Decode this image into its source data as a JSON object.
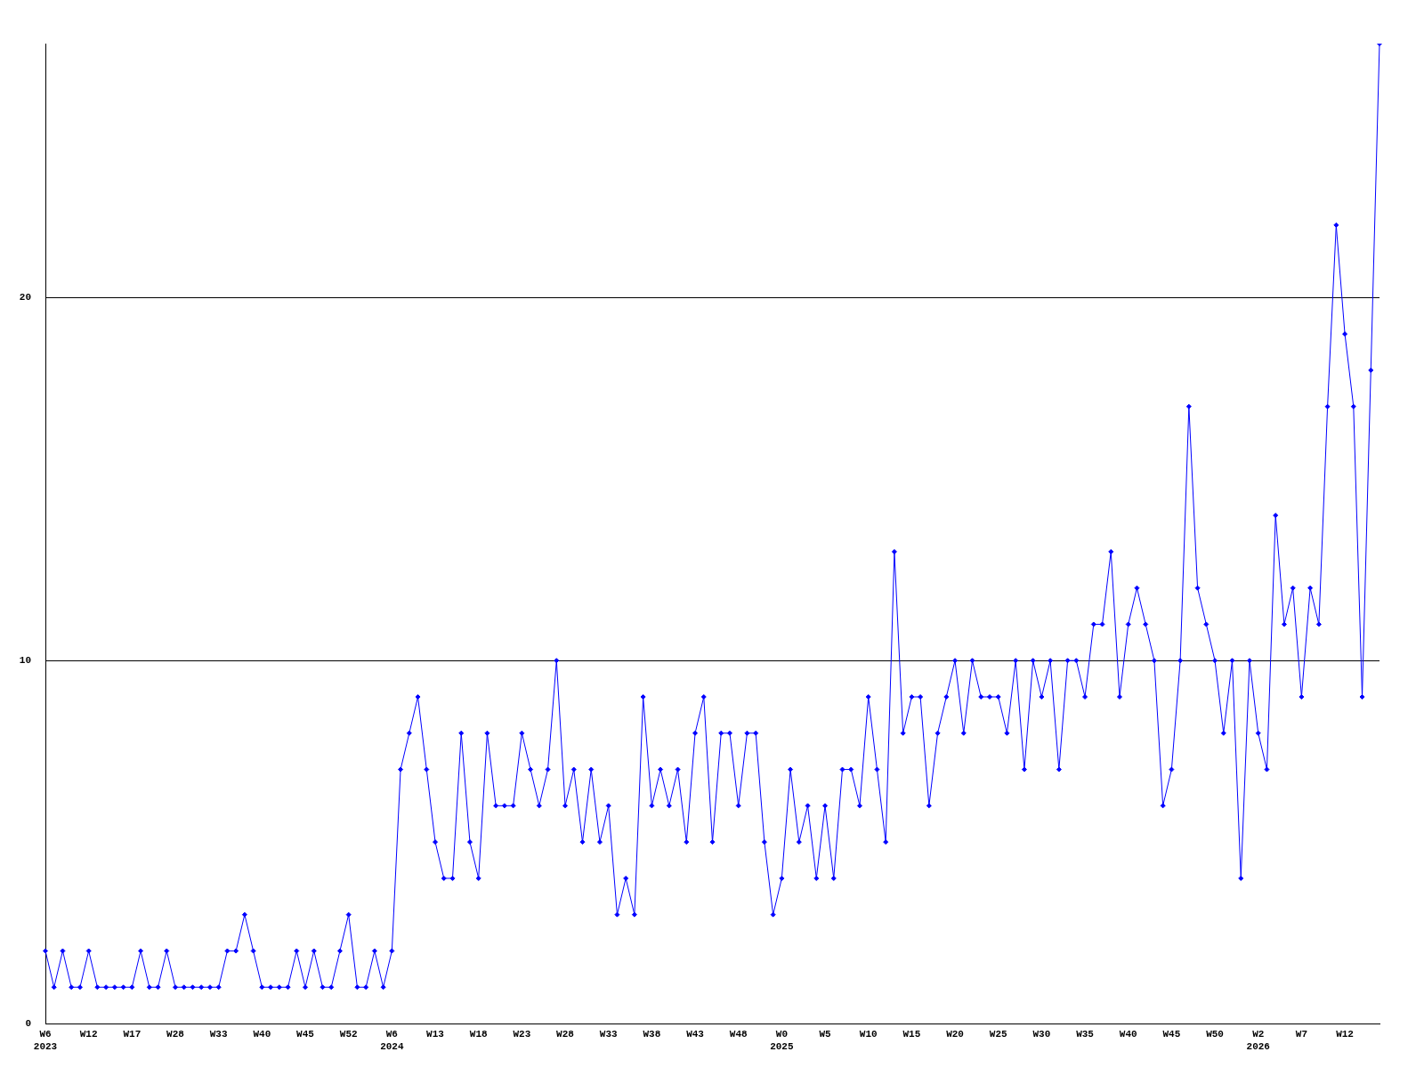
{
  "chart_data": {
    "type": "line",
    "categories": [
      "W6\n2023",
      null,
      null,
      null,
      null,
      "W12",
      null,
      null,
      null,
      null,
      "W17",
      null,
      null,
      null,
      null,
      "W28",
      null,
      null,
      null,
      null,
      "W33",
      null,
      null,
      null,
      null,
      "W40",
      null,
      null,
      null,
      null,
      "W45",
      null,
      null,
      null,
      null,
      "W52",
      null,
      null,
      null,
      null,
      "W6\n2024",
      null,
      null,
      null,
      null,
      "W13",
      null,
      null,
      null,
      null,
      "W18",
      null,
      null,
      null,
      null,
      "W23",
      null,
      null,
      null,
      null,
      "W28",
      null,
      null,
      null,
      null,
      "W33",
      null,
      null,
      null,
      null,
      "W38",
      null,
      null,
      null,
      null,
      "W43",
      null,
      null,
      null,
      null,
      "W48",
      null,
      null,
      null,
      null,
      "W0\n2025",
      null,
      null,
      null,
      null,
      "W5",
      null,
      null,
      null,
      null,
      "W10",
      null,
      null,
      null,
      null,
      "W15",
      null,
      null,
      null,
      null,
      "W20",
      null,
      null,
      null,
      null,
      "W25",
      null,
      null,
      null,
      null,
      "W30",
      null,
      null,
      null,
      null,
      "W35",
      null,
      null,
      null,
      null,
      "W40",
      null,
      null,
      null,
      null,
      "W45",
      null,
      null,
      null,
      null,
      "W50",
      null,
      null,
      null,
      null,
      "W2\n2026",
      null,
      null,
      null,
      null,
      "W7",
      null,
      null,
      null,
      null,
      "W12",
      null,
      null,
      null,
      null
    ],
    "series": [
      {
        "color": "#0000ff",
        "values": [
          2,
          1,
          2,
          1,
          1,
          2,
          1,
          1,
          1,
          1,
          1,
          2,
          1,
          1,
          2,
          1,
          1,
          1,
          1,
          1,
          1,
          2,
          2,
          3,
          2,
          1,
          1,
          1,
          1,
          2,
          1,
          2,
          1,
          1,
          2,
          3,
          1,
          1,
          2,
          1,
          2,
          7,
          8,
          9,
          7,
          5,
          4,
          4,
          8,
          5,
          4,
          8,
          6,
          6,
          6,
          8,
          7,
          6,
          7,
          10,
          6,
          7,
          5,
          7,
          5,
          6,
          3,
          4,
          3,
          9,
          6,
          7,
          6,
          7,
          5,
          8,
          9,
          5,
          8,
          8,
          6,
          8,
          8,
          5,
          3,
          4,
          7,
          5,
          6,
          4,
          6,
          4,
          7,
          7,
          6,
          9,
          7,
          5,
          13,
          8,
          9,
          9,
          6,
          8,
          9,
          10,
          8,
          10,
          9,
          9,
          9,
          8,
          10,
          7,
          10,
          9,
          10,
          7,
          10,
          10,
          9,
          11,
          11,
          13,
          9,
          11,
          12,
          11,
          10,
          6,
          7,
          10,
          17,
          12,
          11,
          10,
          8,
          10,
          4,
          10,
          8,
          7,
          14,
          11,
          12,
          9,
          12,
          11,
          17,
          22,
          19,
          17,
          9,
          18,
          27
        ]
      }
    ],
    "ylim": [
      0,
      27
    ],
    "yticks": [
      0,
      10,
      20
    ],
    "grid": "y",
    "marker": "diamond",
    "line_style": "solid"
  }
}
